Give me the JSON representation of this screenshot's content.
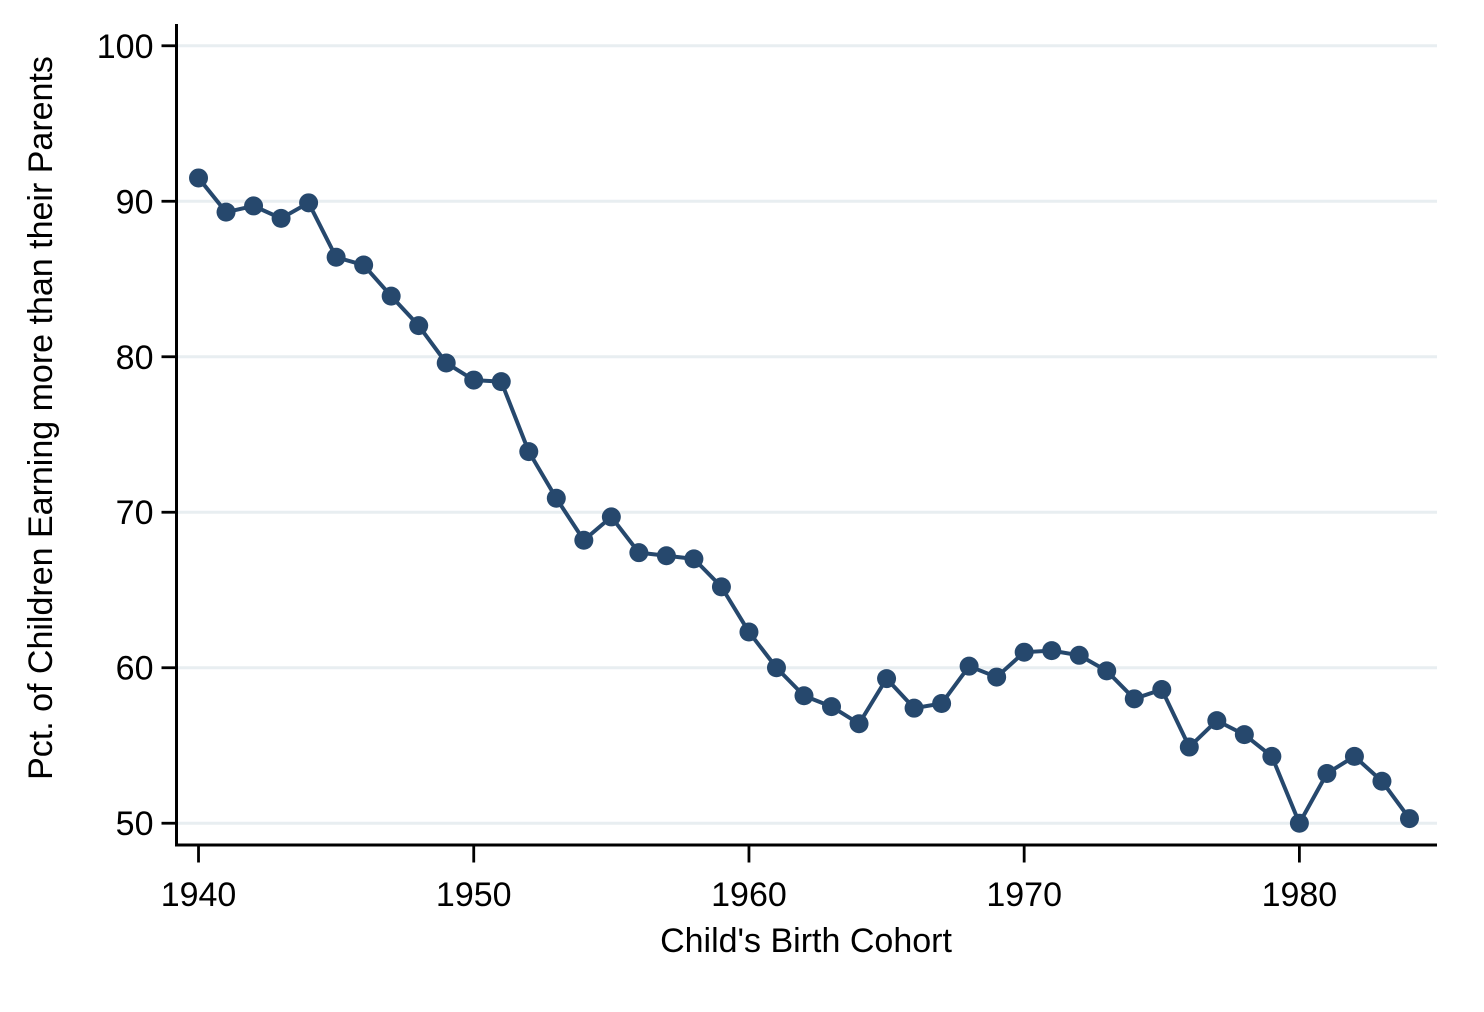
{
  "chart_data": {
    "type": "line",
    "title": "",
    "xlabel": "Child's Birth Cohort",
    "ylabel": "Pct. of Children Earning more than their Parents",
    "x": [
      1940,
      1941,
      1942,
      1943,
      1944,
      1945,
      1946,
      1947,
      1948,
      1949,
      1950,
      1951,
      1952,
      1953,
      1954,
      1955,
      1956,
      1957,
      1958,
      1959,
      1960,
      1961,
      1962,
      1963,
      1964,
      1965,
      1966,
      1967,
      1968,
      1969,
      1970,
      1971,
      1972,
      1973,
      1974,
      1975,
      1976,
      1977,
      1978,
      1979,
      1980,
      1981,
      1982,
      1983,
      1984
    ],
    "series": [
      {
        "name": "pct-children-earning-more-than-parents",
        "values": [
          91.5,
          89.3,
          89.7,
          88.9,
          89.9,
          86.4,
          85.9,
          83.9,
          82.0,
          79.6,
          78.5,
          78.4,
          73.9,
          70.9,
          68.2,
          69.7,
          67.4,
          67.2,
          67.0,
          65.2,
          62.3,
          60.0,
          58.2,
          57.5,
          56.4,
          59.3,
          57.4,
          57.7,
          60.1,
          59.4,
          61.0,
          61.1,
          60.8,
          59.8,
          58.0,
          58.6,
          54.9,
          56.6,
          55.7,
          54.3,
          50.0,
          53.2,
          54.3,
          52.7,
          50.3
        ]
      }
    ],
    "xticks": {
      "values": [
        1940,
        1950,
        1960,
        1970,
        1980
      ],
      "labels": [
        "1940",
        "1950",
        "1960",
        "1970",
        "1980"
      ]
    },
    "yticks": {
      "values": [
        50,
        60,
        70,
        80,
        90,
        100
      ],
      "labels": [
        "50",
        "60",
        "70",
        "80",
        "90",
        "100"
      ]
    },
    "xlim": [
      1939.2,
      1985.0
    ],
    "ylim": [
      48.6,
      101.4
    ],
    "grid": "horizontal",
    "legend": "none",
    "marker": "filled-circle",
    "colors": {
      "line": "#26486d",
      "marker": "#26486d",
      "grid": "#e8eef1",
      "axis": "#000000",
      "text": "#000000",
      "background": "#ffffff"
    }
  }
}
